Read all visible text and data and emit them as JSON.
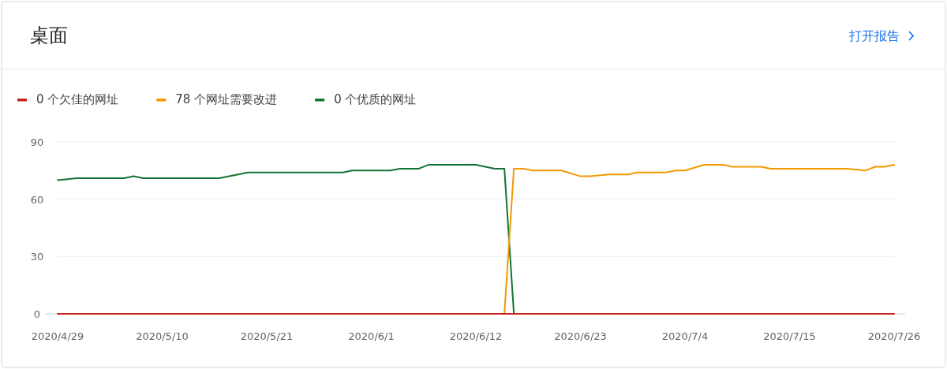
{
  "chart_data": {
    "type": "line",
    "title": "桌面",
    "annotations": [
      "打开报告"
    ],
    "legend": "top left",
    "grid": "y",
    "line_style": "solid",
    "xlim": [
      "2020-04-29",
      "2020-07-26"
    ],
    "xticks": [
      {
        "value": "2020-04-29",
        "label": "2020/4/29"
      },
      {
        "value": "2020-05-10",
        "label": "2020/5/10"
      },
      {
        "value": "2020-05-21",
        "label": "2020/5/21"
      },
      {
        "value": "2020-06-01",
        "label": "2020/6/1"
      },
      {
        "value": "2020-06-12",
        "label": "2020/6/12"
      },
      {
        "value": "2020-06-23",
        "label": "2020/6/23"
      },
      {
        "value": "2020-07-04",
        "label": "2020/7/4"
      },
      {
        "value": "2020-07-15",
        "label": "2020/7/15"
      },
      {
        "value": "2020-07-26",
        "label": "2020/7/26"
      }
    ],
    "ylim": [
      0,
      90
    ],
    "yticks": [
      0,
      30,
      60,
      90
    ],
    "series": [
      {
        "name": "0 个欠佳的网址",
        "color": "#c5221f",
        "x": [
          "2020-04-29",
          "2020-07-26"
        ],
        "values": [
          0,
          0
        ]
      },
      {
        "name": "78 个网址需要改进",
        "color": "#f29900",
        "x": [
          "2020-06-15",
          "2020-06-16",
          "2020-06-17",
          "2020-06-18",
          "2020-06-21",
          "2020-06-23",
          "2020-06-24",
          "2020-06-26",
          "2020-06-28",
          "2020-06-29",
          "2020-07-02",
          "2020-07-03",
          "2020-07-04",
          "2020-07-06",
          "2020-07-08",
          "2020-07-09",
          "2020-07-12",
          "2020-07-13",
          "2020-07-21",
          "2020-07-23",
          "2020-07-24",
          "2020-07-25",
          "2020-07-26"
        ],
        "values": [
          0,
          76,
          76,
          75,
          75,
          72,
          72,
          73,
          73,
          74,
          74,
          75,
          75,
          78,
          78,
          77,
          77,
          76,
          76,
          75,
          77,
          77,
          78
        ]
      },
      {
        "name": "0 个优质的网址",
        "color": "#137333",
        "x": [
          "2020-04-29",
          "2020-05-01",
          "2020-05-06",
          "2020-05-07",
          "2020-05-08",
          "2020-05-16",
          "2020-05-18",
          "2020-05-19",
          "2020-05-29",
          "2020-05-30",
          "2020-06-03",
          "2020-06-04",
          "2020-06-06",
          "2020-06-07",
          "2020-06-12",
          "2020-06-13",
          "2020-06-14",
          "2020-06-15",
          "2020-06-16"
        ],
        "values": [
          70,
          71,
          71,
          72,
          71,
          71,
          73,
          74,
          74,
          75,
          75,
          76,
          76,
          78,
          78,
          77,
          76,
          76,
          0
        ]
      }
    ]
  }
}
